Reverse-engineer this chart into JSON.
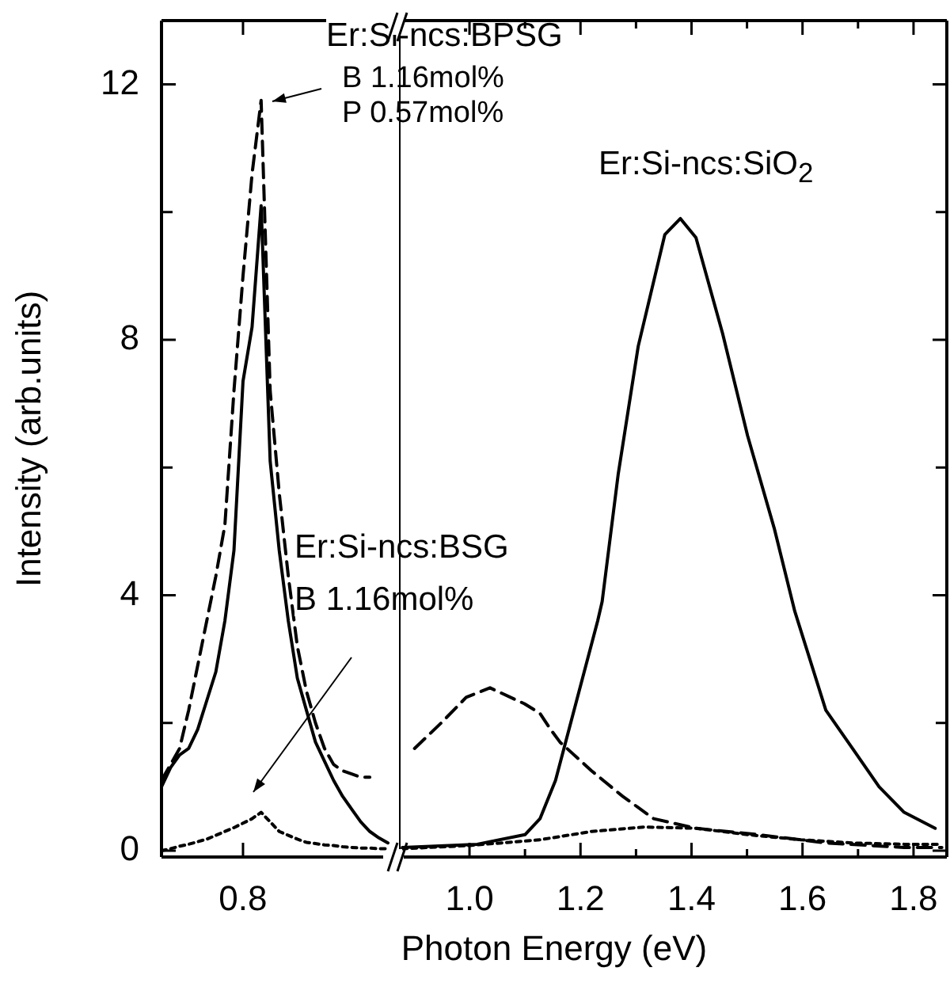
{
  "chart_data": [
    {
      "type": "line",
      "ylabel": "Intensity (arb.units)",
      "categories": [
        null,
        null,
        null,
        null,
        null,
        null,
        null,
        null,
        null,
        "0.8",
        null,
        null,
        null,
        null,
        null,
        null,
        null,
        null,
        null,
        null,
        null,
        null,
        null,
        null,
        null,
        null
      ],
      "ylim": [
        -0.1,
        13
      ],
      "yticks": [
        0,
        {
          "value": 2,
          "label": null
        },
        4,
        {
          "value": 6,
          "label": null
        },
        8,
        {
          "value": 10,
          "label": null
        },
        12
      ],
      "annotations": [
        "Er:Si-ncs:BPSG",
        "B 1.16mol%",
        "P 0.57mol%",
        "Er:Si-ncs:SiO$_{2}$",
        "Er:Si-ncs:BSG",
        "B 1.16mol%"
      ],
      "series": [
        {
          "color": "#000000",
          "line_style": "solid",
          "values": [
            1.0,
            1.3,
            1.5,
            1.6,
            1.9,
            2.35,
            2.8,
            3.6,
            4.7,
            7.35,
            8.2,
            10.1,
            6.1,
            4.7,
            3.6,
            2.7,
            2.2,
            1.7,
            1.4,
            1.1,
            0.85,
            0.65,
            0.45,
            0.3,
            0.2,
            0.12
          ]
        },
        {
          "color": "#000000",
          "line_style": "dashed",
          "values": [
            1.1,
            1.35,
            1.6,
            2.2,
            2.9,
            3.6,
            4.3,
            5.1,
            7.2,
            9.0,
            10.6,
            11.75,
            7.2,
            5.6,
            4.3,
            3.2,
            2.5,
            2.0,
            1.6,
            1.35,
            1.25,
            1.2,
            1.15,
            1.15,
            null,
            null
          ]
        },
        {
          "color": "#000000",
          "line_style": "dotted",
          "values": [
            0.0,
            0.03,
            0.07,
            0.1,
            0.14,
            0.18,
            0.24,
            0.3,
            0.36,
            0.43,
            0.5,
            0.6,
            0.45,
            0.3,
            0.24,
            0.18,
            0.13,
            0.11,
            0.09,
            0.08,
            0.06,
            0.05,
            0.04,
            0.04,
            0.03,
            0.03
          ]
        }
      ]
    },
    {
      "type": "line",
      "xlabel": "Photon Energy (eV)",
      "tick_labels": "x",
      "xlim": [
        0.873,
        1.86
      ],
      "xticks": [
        {
          "value": 1,
          "label": "1.0"
        },
        {
          "value": 1.1,
          "label": null
        },
        1.2,
        {
          "value": 1.3,
          "label": null
        },
        1.4,
        {
          "value": 1.5,
          "label": null
        },
        1.6,
        {
          "value": 1.7,
          "label": null
        },
        1.8
      ],
      "ylim": [
        -0.1,
        13
      ],
      "yticks": [
        0,
        {
          "value": 2,
          "label": null
        },
        4,
        {
          "value": 6,
          "label": null
        },
        8,
        {
          "value": 10,
          "label": null
        },
        12
      ],
      "series": [
        {
          "color": "#000000",
          "line_style": "solid",
          "x": [
            0.879,
            1.014,
            1.1,
            1.127,
            1.155,
            1.231,
            1.239,
            1.268,
            1.304,
            1.352,
            1.38,
            1.408,
            1.456,
            1.501,
            1.549,
            1.586,
            1.642,
            1.69,
            1.738,
            1.783,
            1.839
          ],
          "values": [
            0.05,
            0.1,
            0.25,
            0.5,
            1.1,
            3.6,
            3.9,
            5.9,
            7.9,
            9.65,
            9.9,
            9.6,
            8.1,
            6.5,
            5.05,
            3.75,
            2.2,
            1.6,
            1.0,
            0.6,
            0.35
          ]
        },
        {
          "color": "#000000",
          "line_style": "dashed",
          "x": [
            0.901,
            0.949,
            0.994,
            1.037,
            1.099,
            1.127,
            1.146,
            1.163,
            1.22,
            1.276,
            1.332,
            1.408,
            1.521,
            1.642,
            1.783,
            1.851
          ],
          "values": [
            1.6,
            2.0,
            2.4,
            2.55,
            2.3,
            2.15,
            1.9,
            1.7,
            1.25,
            0.85,
            0.5,
            0.35,
            0.25,
            0.12,
            0.05,
            0.05
          ]
        },
        {
          "color": "#000000",
          "line_style": "dotted",
          "x": [
            0.879,
            1.0,
            1.127,
            1.22,
            1.315,
            1.408,
            1.501,
            1.597,
            1.69,
            1.783,
            1.851
          ],
          "values": [
            0.03,
            0.08,
            0.17,
            0.3,
            0.37,
            0.35,
            0.25,
            0.17,
            0.12,
            0.1,
            0.1
          ]
        }
      ]
    }
  ]
}
